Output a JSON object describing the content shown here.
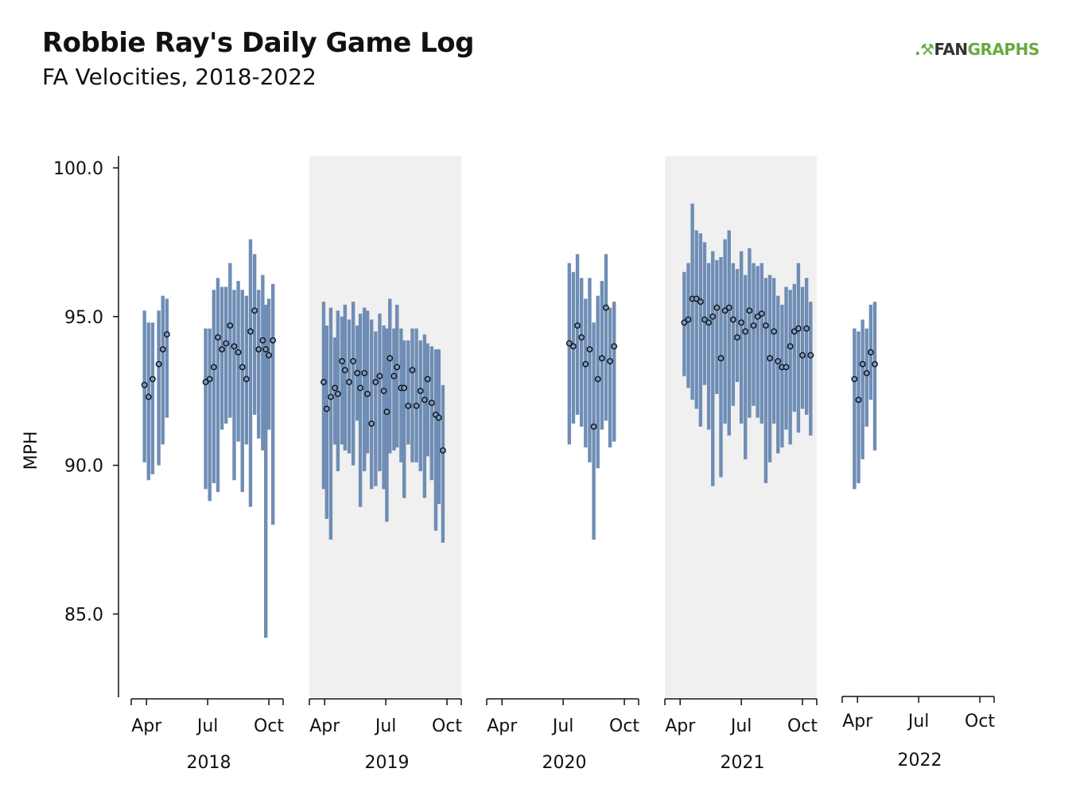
{
  "header": {
    "title": "Robbie Ray's Daily Game Log",
    "subtitle": "FA Velocities, 2018-2022"
  },
  "logo": {
    "mark": ".⚒",
    "part1": "FAN",
    "part2": "GRAPHS"
  },
  "colors": {
    "bar": "#6f8db5",
    "shade": "#f0f0f0",
    "point_fill": "#7a9ac4",
    "point_stroke": "#111111"
  },
  "chart_data": {
    "type": "error-bar scatter",
    "title": "Robbie Ray's Daily Game Log",
    "subtitle": "FA Velocities, 2018-2022",
    "ylabel": "MPH",
    "xlabel": "",
    "ylim": [
      82.2,
      100.4
    ],
    "yticks": [
      "85.0",
      "90.0",
      "95.0",
      "100.0"
    ],
    "month_ticks": [
      "Apr",
      "Jul",
      "Oct"
    ],
    "shaded_years": [
      "2019",
      "2021"
    ],
    "grid": false,
    "panels": [
      {
        "year": "2018",
        "games": [
          {
            "month": 3.9,
            "lo": 90.1,
            "avg": 92.7,
            "hi": 95.2
          },
          {
            "month": 4.1,
            "lo": 89.5,
            "avg": 92.3,
            "hi": 94.8
          },
          {
            "month": 4.3,
            "lo": 89.7,
            "avg": 92.9,
            "hi": 94.8
          },
          {
            "month": 4.6,
            "lo": 90.0,
            "avg": 93.4,
            "hi": 95.2
          },
          {
            "month": 4.8,
            "lo": 90.7,
            "avg": 93.9,
            "hi": 95.7
          },
          {
            "month": 5.0,
            "lo": 91.6,
            "avg": 94.4,
            "hi": 95.6
          },
          {
            "month": 6.9,
            "lo": 89.2,
            "avg": 92.8,
            "hi": 94.6
          },
          {
            "month": 7.1,
            "lo": 88.8,
            "avg": 92.9,
            "hi": 94.6
          },
          {
            "month": 7.3,
            "lo": 89.4,
            "avg": 93.3,
            "hi": 95.9
          },
          {
            "month": 7.5,
            "lo": 89.1,
            "avg": 94.3,
            "hi": 96.3
          },
          {
            "month": 7.7,
            "lo": 91.2,
            "avg": 93.9,
            "hi": 96.0
          },
          {
            "month": 7.9,
            "lo": 91.4,
            "avg": 94.1,
            "hi": 96.0
          },
          {
            "month": 8.1,
            "lo": 91.6,
            "avg": 94.7,
            "hi": 96.8
          },
          {
            "month": 8.3,
            "lo": 89.5,
            "avg": 94.0,
            "hi": 95.9
          },
          {
            "month": 8.5,
            "lo": 90.8,
            "avg": 93.8,
            "hi": 96.2
          },
          {
            "month": 8.7,
            "lo": 89.1,
            "avg": 93.3,
            "hi": 95.9
          },
          {
            "month": 8.9,
            "lo": 90.7,
            "avg": 92.9,
            "hi": 95.7
          },
          {
            "month": 9.1,
            "lo": 88.6,
            "avg": 94.5,
            "hi": 97.6
          },
          {
            "month": 9.3,
            "lo": 91.7,
            "avg": 95.2,
            "hi": 97.1
          },
          {
            "month": 9.5,
            "lo": 90.9,
            "avg": 93.9,
            "hi": 95.9
          },
          {
            "month": 9.7,
            "lo": 90.5,
            "avg": 94.2,
            "hi": 96.4
          },
          {
            "month": 9.85,
            "lo": 84.2,
            "avg": 93.9,
            "hi": 95.4
          },
          {
            "month": 10.0,
            "lo": 91.2,
            "avg": 93.7,
            "hi": 95.6
          },
          {
            "month": 10.2,
            "lo": 88.0,
            "avg": 94.2,
            "hi": 96.1
          }
        ]
      },
      {
        "year": "2019",
        "games": [
          {
            "month": 3.95,
            "lo": 89.2,
            "avg": 92.8,
            "hi": 95.5
          },
          {
            "month": 4.1,
            "lo": 88.2,
            "avg": 91.9,
            "hi": 94.7
          },
          {
            "month": 4.3,
            "lo": 87.5,
            "avg": 92.3,
            "hi": 95.3
          },
          {
            "month": 4.5,
            "lo": 90.7,
            "avg": 92.6,
            "hi": 94.3
          },
          {
            "month": 4.65,
            "lo": 89.8,
            "avg": 92.4,
            "hi": 95.2
          },
          {
            "month": 4.85,
            "lo": 90.7,
            "avg": 93.5,
            "hi": 95.0
          },
          {
            "month": 5.0,
            "lo": 90.5,
            "avg": 93.2,
            "hi": 95.4
          },
          {
            "month": 5.2,
            "lo": 90.4,
            "avg": 92.8,
            "hi": 94.9
          },
          {
            "month": 5.4,
            "lo": 90.0,
            "avg": 93.5,
            "hi": 95.5
          },
          {
            "month": 5.6,
            "lo": 91.5,
            "avg": 93.1,
            "hi": 94.7
          },
          {
            "month": 5.75,
            "lo": 88.6,
            "avg": 92.6,
            "hi": 95.1
          },
          {
            "month": 5.95,
            "lo": 89.8,
            "avg": 93.1,
            "hi": 95.3
          },
          {
            "month": 6.1,
            "lo": 90.4,
            "avg": 92.4,
            "hi": 95.2
          },
          {
            "month": 6.3,
            "lo": 89.2,
            "avg": 91.4,
            "hi": 94.9
          },
          {
            "month": 6.5,
            "lo": 89.3,
            "avg": 92.8,
            "hi": 94.5
          },
          {
            "month": 6.7,
            "lo": 89.8,
            "avg": 93.0,
            "hi": 95.1
          },
          {
            "month": 6.9,
            "lo": 89.2,
            "avg": 92.5,
            "hi": 94.7
          },
          {
            "month": 7.05,
            "lo": 88.1,
            "avg": 91.8,
            "hi": 94.6
          },
          {
            "month": 7.2,
            "lo": 90.4,
            "avg": 93.6,
            "hi": 95.6
          },
          {
            "month": 7.4,
            "lo": 90.5,
            "avg": 93.0,
            "hi": 94.6
          },
          {
            "month": 7.55,
            "lo": 90.6,
            "avg": 93.3,
            "hi": 95.4
          },
          {
            "month": 7.75,
            "lo": 90.1,
            "avg": 92.6,
            "hi": 94.6
          },
          {
            "month": 7.9,
            "lo": 88.9,
            "avg": 92.6,
            "hi": 94.2
          },
          {
            "month": 8.1,
            "lo": 90.7,
            "avg": 92.0,
            "hi": 94.2
          },
          {
            "month": 8.3,
            "lo": 90.1,
            "avg": 93.2,
            "hi": 94.6
          },
          {
            "month": 8.5,
            "lo": 90.1,
            "avg": 92.0,
            "hi": 94.6
          },
          {
            "month": 8.7,
            "lo": 89.8,
            "avg": 92.5,
            "hi": 94.2
          },
          {
            "month": 8.9,
            "lo": 88.9,
            "avg": 92.2,
            "hi": 94.4
          },
          {
            "month": 9.05,
            "lo": 90.3,
            "avg": 92.9,
            "hi": 94.1
          },
          {
            "month": 9.25,
            "lo": 89.5,
            "avg": 92.1,
            "hi": 94.0
          },
          {
            "month": 9.45,
            "lo": 87.8,
            "avg": 91.7,
            "hi": 93.9
          },
          {
            "month": 9.6,
            "lo": 88.7,
            "avg": 91.6,
            "hi": 93.9
          },
          {
            "month": 9.8,
            "lo": 87.4,
            "avg": 90.5,
            "hi": 92.7
          }
        ]
      },
      {
        "year": "2020",
        "games": [
          {
            "month": 7.3,
            "lo": 90.7,
            "avg": 94.1,
            "hi": 96.8
          },
          {
            "month": 7.5,
            "lo": 91.4,
            "avg": 94.0,
            "hi": 96.5
          },
          {
            "month": 7.7,
            "lo": 91.7,
            "avg": 94.7,
            "hi": 97.1
          },
          {
            "month": 7.9,
            "lo": 91.3,
            "avg": 94.3,
            "hi": 96.3
          },
          {
            "month": 8.1,
            "lo": 90.6,
            "avg": 93.4,
            "hi": 95.6
          },
          {
            "month": 8.3,
            "lo": 90.1,
            "avg": 93.9,
            "hi": 96.3
          },
          {
            "month": 8.5,
            "lo": 87.5,
            "avg": 91.3,
            "hi": 94.8
          },
          {
            "month": 8.7,
            "lo": 89.9,
            "avg": 92.9,
            "hi": 95.7
          },
          {
            "month": 8.9,
            "lo": 91.2,
            "avg": 93.6,
            "hi": 96.2
          },
          {
            "month": 9.1,
            "lo": 91.5,
            "avg": 95.3,
            "hi": 97.1
          },
          {
            "month": 9.3,
            "lo": 90.6,
            "avg": 93.5,
            "hi": 95.3
          },
          {
            "month": 9.5,
            "lo": 90.8,
            "avg": 94.0,
            "hi": 95.5
          }
        ]
      },
      {
        "year": "2021",
        "games": [
          {
            "month": 4.2,
            "lo": 93.0,
            "avg": 94.8,
            "hi": 96.5
          },
          {
            "month": 4.4,
            "lo": 92.6,
            "avg": 94.9,
            "hi": 96.8
          },
          {
            "month": 4.6,
            "lo": 92.2,
            "avg": 95.6,
            "hi": 98.8
          },
          {
            "month": 4.8,
            "lo": 91.9,
            "avg": 95.6,
            "hi": 97.9
          },
          {
            "month": 5.0,
            "lo": 91.3,
            "avg": 95.5,
            "hi": 97.8
          },
          {
            "month": 5.2,
            "lo": 92.7,
            "avg": 94.9,
            "hi": 97.5
          },
          {
            "month": 5.4,
            "lo": 91.2,
            "avg": 94.8,
            "hi": 96.8
          },
          {
            "month": 5.6,
            "lo": 89.3,
            "avg": 95.0,
            "hi": 97.2
          },
          {
            "month": 5.8,
            "lo": 92.4,
            "avg": 95.3,
            "hi": 96.9
          },
          {
            "month": 6.0,
            "lo": 89.6,
            "avg": 93.6,
            "hi": 97.0
          },
          {
            "month": 6.2,
            "lo": 91.4,
            "avg": 95.2,
            "hi": 97.6
          },
          {
            "month": 6.4,
            "lo": 91.0,
            "avg": 95.3,
            "hi": 97.9
          },
          {
            "month": 6.6,
            "lo": 92.0,
            "avg": 94.9,
            "hi": 96.8
          },
          {
            "month": 6.8,
            "lo": 92.8,
            "avg": 94.3,
            "hi": 96.6
          },
          {
            "month": 7.0,
            "lo": 91.4,
            "avg": 94.8,
            "hi": 97.2
          },
          {
            "month": 7.2,
            "lo": 90.2,
            "avg": 94.5,
            "hi": 96.4
          },
          {
            "month": 7.4,
            "lo": 91.6,
            "avg": 95.2,
            "hi": 97.3
          },
          {
            "month": 7.6,
            "lo": 92.0,
            "avg": 94.7,
            "hi": 96.8
          },
          {
            "month": 7.8,
            "lo": 91.6,
            "avg": 95.0,
            "hi": 96.7
          },
          {
            "month": 8.0,
            "lo": 91.4,
            "avg": 95.1,
            "hi": 96.8
          },
          {
            "month": 8.2,
            "lo": 89.4,
            "avg": 94.7,
            "hi": 96.3
          },
          {
            "month": 8.4,
            "lo": 90.1,
            "avg": 93.6,
            "hi": 96.4
          },
          {
            "month": 8.6,
            "lo": 91.4,
            "avg": 94.5,
            "hi": 96.3
          },
          {
            "month": 8.8,
            "lo": 90.4,
            "avg": 93.5,
            "hi": 95.7
          },
          {
            "month": 9.0,
            "lo": 90.6,
            "avg": 93.3,
            "hi": 95.4
          },
          {
            "month": 9.2,
            "lo": 91.2,
            "avg": 93.3,
            "hi": 96.0
          },
          {
            "month": 9.4,
            "lo": 90.7,
            "avg": 94.0,
            "hi": 95.9
          },
          {
            "month": 9.6,
            "lo": 91.8,
            "avg": 94.5,
            "hi": 96.1
          },
          {
            "month": 9.8,
            "lo": 91.1,
            "avg": 94.6,
            "hi": 96.8
          },
          {
            "month": 10.0,
            "lo": 91.9,
            "avg": 93.7,
            "hi": 96.0
          },
          {
            "month": 10.2,
            "lo": 91.7,
            "avg": 94.6,
            "hi": 96.3
          },
          {
            "month": 10.4,
            "lo": 91.0,
            "avg": 93.7,
            "hi": 95.5
          }
        ]
      },
      {
        "year": "2022",
        "games": [
          {
            "month": 3.85,
            "lo": 89.2,
            "avg": 92.9,
            "hi": 94.6
          },
          {
            "month": 4.05,
            "lo": 89.4,
            "avg": 92.2,
            "hi": 94.5
          },
          {
            "month": 4.25,
            "lo": 90.2,
            "avg": 93.4,
            "hi": 94.9
          },
          {
            "month": 4.45,
            "lo": 91.3,
            "avg": 93.1,
            "hi": 94.6
          },
          {
            "month": 4.65,
            "lo": 92.2,
            "avg": 93.8,
            "hi": 95.4
          },
          {
            "month": 4.85,
            "lo": 90.5,
            "avg": 93.4,
            "hi": 95.5
          }
        ]
      }
    ]
  }
}
